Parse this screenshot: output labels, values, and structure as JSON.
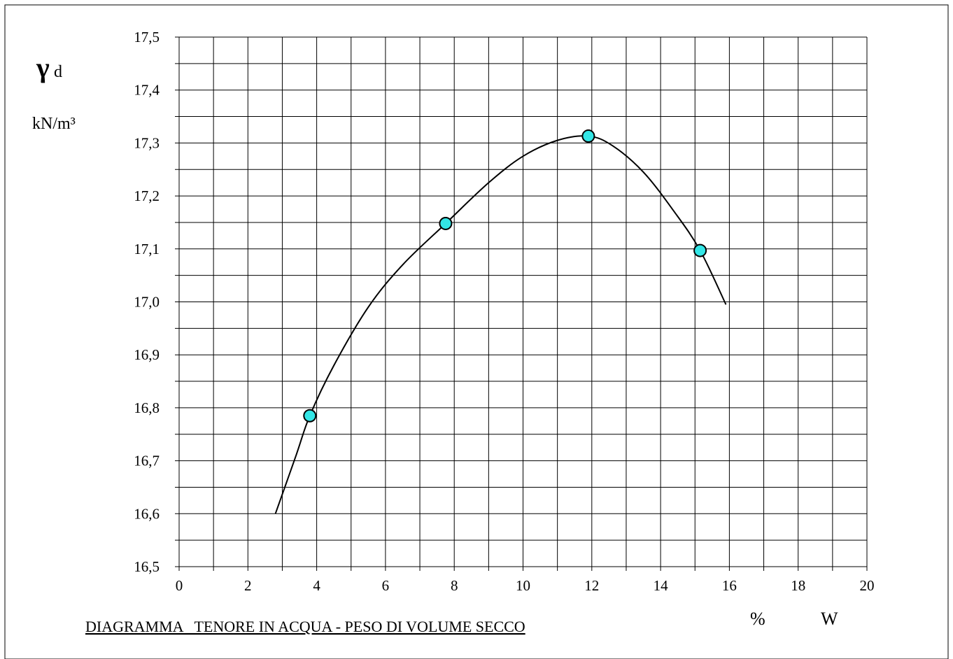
{
  "chart_data": {
    "type": "scatter",
    "title": "DIAGRAMMA   TENORE IN ACQUA - PESO DI VOLUME SECCO",
    "ylabel": {
      "symbol": "γ",
      "subscript": "d",
      "unit": "kN/m³"
    },
    "xlabel": {
      "unit": "%",
      "symbol": "W"
    },
    "xlim": [
      0,
      20
    ],
    "ylim": [
      16.5,
      17.5
    ],
    "x_ticks": [
      "0",
      "2",
      "4",
      "6",
      "8",
      "10",
      "12",
      "14",
      "16",
      "18",
      "20"
    ],
    "y_ticks": [
      "17,5",
      "17,4",
      "17,3",
      "17,2",
      "17,1",
      "17,0",
      "16,9",
      "16,8",
      "16,7",
      "16,6",
      "16,5"
    ],
    "x_grid_step": 1,
    "y_grid_step": 0.05,
    "grid": true,
    "series": [
      {
        "points": [
          {
            "x": 3.8,
            "y": 16.785
          },
          {
            "x": 7.75,
            "y": 17.148
          },
          {
            "x": 11.9,
            "y": 17.313
          },
          {
            "x": 15.15,
            "y": 17.097
          }
        ],
        "marker_color": "#33e6e6"
      }
    ],
    "fit_curve": [
      {
        "x": 2.8,
        "y": 16.6
      },
      {
        "x": 3.4,
        "y": 16.71
      },
      {
        "x": 3.8,
        "y": 16.785
      },
      {
        "x": 4.5,
        "y": 16.88
      },
      {
        "x": 5.5,
        "y": 16.99
      },
      {
        "x": 6.5,
        "y": 17.07
      },
      {
        "x": 7.75,
        "y": 17.148
      },
      {
        "x": 9.0,
        "y": 17.225
      },
      {
        "x": 10.0,
        "y": 17.275
      },
      {
        "x": 11.0,
        "y": 17.305
      },
      {
        "x": 11.9,
        "y": 17.313
      },
      {
        "x": 12.6,
        "y": 17.295
      },
      {
        "x": 13.5,
        "y": 17.245
      },
      {
        "x": 14.4,
        "y": 17.17
      },
      {
        "x": 15.15,
        "y": 17.097
      },
      {
        "x": 15.9,
        "y": 16.995
      }
    ]
  }
}
